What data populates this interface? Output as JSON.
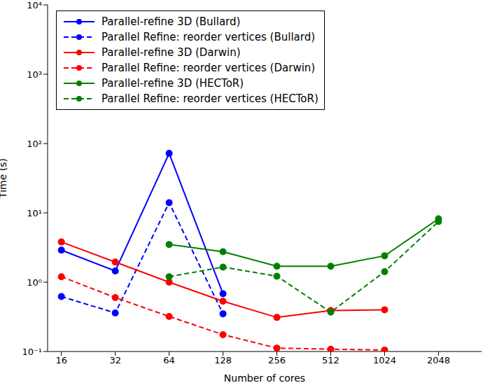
{
  "chart_data": {
    "type": "line",
    "x_label": "Number of cores",
    "y_label": "Time (s)",
    "log": true,
    "grid": false,
    "legend": "upper left",
    "x": [
      16,
      32,
      64,
      128,
      256,
      512,
      1024,
      2048
    ],
    "xlim": [
      13.4,
      3566
    ],
    "xticks": [
      16,
      32,
      64,
      128,
      256,
      512,
      1024,
      2048
    ],
    "ylim": [
      0.1,
      10000
    ],
    "yticks": [
      {
        "value": 0.1,
        "label": "10⁻¹"
      },
      {
        "value": 1,
        "label": "10⁰"
      },
      {
        "value": 10,
        "label": "10¹"
      },
      {
        "value": 100,
        "label": "10²"
      },
      {
        "value": 1000,
        "label": "10³"
      },
      {
        "value": 10000,
        "label": "10⁴"
      }
    ],
    "series": [
      {
        "name": "Parallel-refine 3D (Bullard)",
        "color": "#0000ff",
        "marker": "circle",
        "line_style": "solid",
        "values": [
          2.9,
          1.45,
          72,
          0.68,
          null,
          null,
          null,
          null
        ]
      },
      {
        "name": "Parallel Refine: reorder vertices (Bullard)",
        "color": "#0000ff",
        "marker": "circle",
        "line_style": "dashed",
        "values": [
          0.62,
          0.36,
          14,
          0.35,
          null,
          null,
          null,
          null
        ]
      },
      {
        "name": "Parallel-refine 3D (Darwin)",
        "color": "#ff0000",
        "marker": "circle",
        "line_style": "solid",
        "values": [
          3.8,
          1.95,
          1.0,
          0.53,
          0.31,
          0.39,
          0.4,
          null
        ]
      },
      {
        "name": "Parallel Refine: reorder vertices (Darwin)",
        "color": "#ff0000",
        "marker": "circle",
        "line_style": "dashed",
        "values": [
          1.2,
          0.6,
          0.32,
          0.175,
          0.112,
          0.108,
          0.105,
          null
        ]
      },
      {
        "name": "Parallel-refine 3D (HECToR)",
        "color": "#008000",
        "marker": "circle",
        "line_style": "solid",
        "values": [
          null,
          null,
          3.5,
          2.75,
          1.7,
          1.7,
          2.4,
          8.2
        ]
      },
      {
        "name": "Parallel Refine: reorder vertices (HECToR)",
        "color": "#008000",
        "marker": "circle",
        "line_style": "dashed",
        "values": [
          null,
          null,
          1.2,
          1.65,
          1.22,
          0.37,
          1.42,
          7.5
        ]
      }
    ]
  }
}
